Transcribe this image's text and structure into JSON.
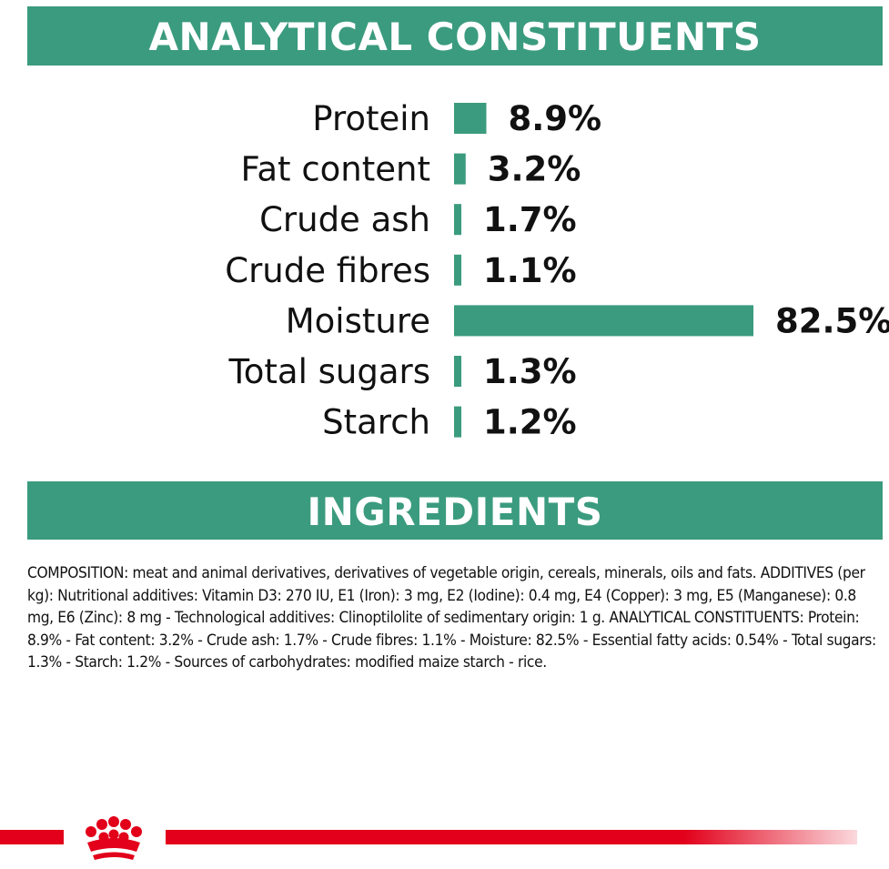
{
  "headings": {
    "analytical": "ANALYTICAL CONSTITUENTS",
    "ingredients": "INGREDIENTS"
  },
  "colors": {
    "banner": "#3b9b7e",
    "bar": "#3b9b7e",
    "brand_red": "#e2001a"
  },
  "chart_data": {
    "type": "bar",
    "orientation": "horizontal",
    "categories": [
      "Protein",
      "Fat content",
      "Crude ash",
      "Crude fibres",
      "Moisture",
      "Total sugars",
      "Starch"
    ],
    "values": [
      8.9,
      3.2,
      1.7,
      1.1,
      82.5,
      1.3,
      1.2
    ],
    "value_labels": [
      "8.9%",
      "3.2%",
      "1.7%",
      "1.1%",
      "82.5%",
      "1.3%",
      "1.2%"
    ],
    "unit": "%",
    "title": "",
    "xlabel": "",
    "ylabel": "",
    "grid": false,
    "legend": "none"
  },
  "ingredients_text": "COMPOSITION: meat and animal derivatives, derivatives of vegetable origin, cereals, minerals, oils and fats. ADDITIVES (per kg): Nutritional additives: Vitamin D3: 270 IU, E1 (Iron): 3 mg, E2 (Iodine): 0.4 mg, E4 (Copper): 3 mg, E5 (Manganese): 0.8 mg, E6 (Zinc): 8 mg - Technological additives: Clinoptilolite of sedimentary origin: 1 g. ANALYTICAL CONSTITUENTS: Protein: 8.9% - Fat content: 3.2% - Crude ash: 1.7% - Crude fibres: 1.1% - Moisture: 82.5% - Essential fatty acids: 0.54% - Total sugars: 1.3% - Starch: 1.2% - Sources of carbohydrates: modified maize starch - rice.",
  "footer": {
    "logo_icon": "crown-logo-icon"
  }
}
